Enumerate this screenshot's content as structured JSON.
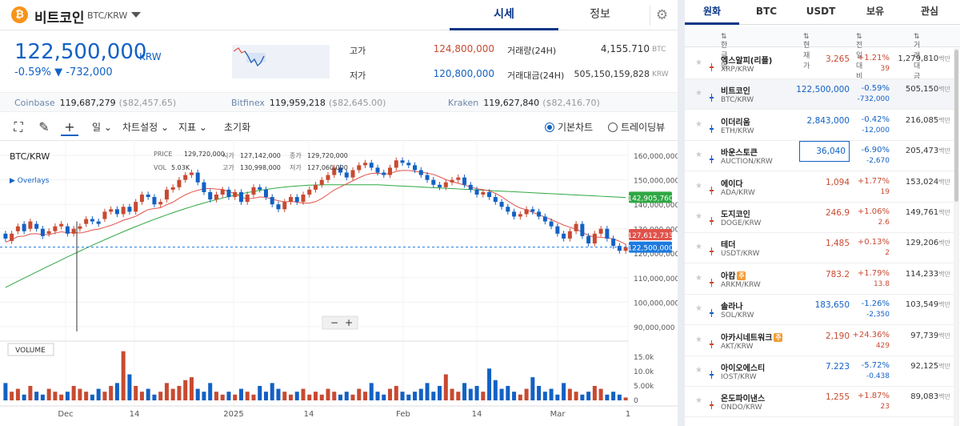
{
  "header": {
    "coin_icon": "₿",
    "title": "비트코인",
    "pair": "BTC/KRW",
    "tabs": [
      "시세",
      "정보"
    ],
    "settings_icon": "gear-icon"
  },
  "ticker": {
    "price": "122,500,000",
    "unit": "KRW",
    "change": "-0.59% ▼ -732,000",
    "high_label": "고가",
    "high": "124,800,000",
    "low_label": "저가",
    "low": "120,800,000",
    "vol_label": "거래량(24H)",
    "vol": "4,155.710",
    "vol_unit": "BTC",
    "amt_label": "거래대금(24H)",
    "amt": "505,150,159,828",
    "amt_unit": "KRW"
  },
  "exchanges": [
    {
      "name": "Coinbase",
      "krw": "119,687,279",
      "usd": "($82,457.65)"
    },
    {
      "name": "Bitfinex",
      "krw": "119,959,218",
      "usd": "($82,645.00)"
    },
    {
      "name": "Kraken",
      "krw": "119,627,840",
      "usd": "($82,416.70)"
    }
  ],
  "toolbar": {
    "period": "일",
    "chart_settings": "차트설정",
    "indicators": "지표",
    "reset": "초기화",
    "basic_chart": "기본차트",
    "tradingview": "트레이딩뷰"
  },
  "chart_data": {
    "type": "candlestick",
    "pair": "BTC/KRW",
    "overlays_label": "Overlays",
    "volume_label": "VOLUME",
    "ohlc_info": {
      "price_label": "PRICE",
      "price": "129,720,000",
      "open_label": "시가",
      "open": "127,142,000",
      "close_label": "종가",
      "close": "129,720,000",
      "vol_label": "VOL",
      "vol": "5.03K",
      "high_label": "고가",
      "high": "130,998,000",
      "low_label": "저가",
      "low": "127,060,000"
    },
    "y_ticks": [
      "160,000,000",
      "150,000,000",
      "140,000,000",
      "130,000,000",
      "120,000,000",
      "110,000,000",
      "100,000,000",
      "90,000,000"
    ],
    "y_range": [
      86000000,
      163000000
    ],
    "vol_ticks": [
      "15.0k",
      "10.0k",
      "5.00k",
      "0"
    ],
    "x_ticks": [
      "Dec",
      "14",
      "2025",
      "14",
      "Feb",
      "14",
      "Mar",
      "1"
    ],
    "price_tags": [
      {
        "label": "142,905,760",
        "value": 142905760,
        "color": "#2ea843"
      },
      {
        "label": "127,612,733",
        "value": 127612733,
        "color": "#e0524a"
      },
      {
        "label": "122,500,000",
        "value": 122500000,
        "color": "#1c7ae0"
      }
    ],
    "closes": [
      126,
      128,
      131,
      129,
      133,
      130,
      127,
      129,
      131,
      132,
      128,
      130,
      131,
      134,
      133,
      132,
      137,
      138,
      136,
      139,
      137,
      141,
      144,
      143,
      140,
      141,
      146,
      147,
      150,
      152,
      153,
      149,
      145,
      142,
      144,
      146,
      143,
      145,
      141,
      144,
      147,
      146,
      143,
      140,
      138,
      141,
      143,
      141,
      144,
      146,
      148,
      150,
      152,
      155,
      153,
      151,
      154,
      156,
      157,
      155,
      153,
      152,
      155,
      158,
      157,
      156,
      154,
      152,
      150,
      148,
      147,
      149,
      150,
      151,
      148,
      146,
      144,
      145,
      143,
      141,
      139,
      137,
      135,
      136,
      138,
      137,
      135,
      133,
      131,
      128,
      126,
      129,
      132,
      127,
      124,
      128,
      130,
      126,
      123,
      121,
      122.5
    ],
    "opens_offset": [
      2,
      -3,
      -2,
      3,
      -3,
      2,
      3,
      -1,
      -2,
      -1,
      3,
      -2,
      -1,
      -2,
      1,
      1,
      -3,
      -1,
      2,
      -3,
      2,
      -4,
      -3,
      1,
      3,
      -1,
      -4,
      -1,
      -3,
      -2,
      -1,
      4,
      4,
      3,
      -2,
      -2,
      3,
      -2,
      4,
      -3,
      -3,
      1,
      3,
      3,
      2,
      -3,
      -2,
      2,
      -3,
      -2,
      -2,
      -2,
      -2,
      -3,
      2,
      2,
      -3,
      -2,
      -1,
      2,
      2,
      1,
      -3,
      -3,
      1,
      1,
      2,
      2,
      2,
      2,
      1,
      -2,
      -1,
      -1,
      3,
      2,
      2,
      -1,
      2,
      2,
      2,
      2,
      2,
      -1,
      -2,
      1,
      2,
      2,
      2,
      3,
      2,
      -3,
      -3,
      5,
      3,
      -4,
      -2,
      4,
      3,
      2,
      -1.5
    ],
    "volumes": [
      6,
      3,
      4,
      2,
      5,
      3,
      2,
      4,
      3,
      2,
      3,
      5,
      4,
      3,
      2,
      4,
      3,
      5,
      6,
      17,
      9,
      5,
      3,
      4,
      2,
      3,
      6,
      4,
      5,
      7,
      8,
      4,
      3,
      6,
      3,
      2,
      3,
      2,
      4,
      3,
      2,
      5,
      3,
      6,
      4,
      3,
      2,
      3,
      4,
      2,
      3,
      2,
      4,
      3,
      2,
      3,
      2,
      4,
      3,
      6,
      3,
      2,
      4,
      5,
      3,
      2,
      3,
      4,
      6,
      3,
      5,
      9,
      4,
      3,
      6,
      4,
      5,
      3,
      11,
      7,
      4,
      5,
      3,
      2,
      4,
      8,
      5,
      3,
      4,
      2,
      6,
      4,
      3,
      2,
      3,
      5,
      4,
      2,
      3,
      2,
      1
    ],
    "ma_short_offset": -1.5,
    "ma_long_note": "",
    "y_unit": ""
  },
  "market": {
    "tabs": [
      "원화",
      "BTC",
      "USDT",
      "보유",
      "관심"
    ],
    "headers": [
      "한글명",
      "현재가",
      "전일대비",
      "거래대금"
    ],
    "vol_suffix": "백만",
    "rows": [
      {
        "name": "엑스알피(리플)",
        "pair": "XRP/KRW",
        "price": "3,265",
        "rate": "+1.21%",
        "diff": "39",
        "vol": "1,279,810",
        "dir": "up"
      },
      {
        "name": "비트코인",
        "pair": "BTC/KRW",
        "price": "122,500,000",
        "rate": "-0.59%",
        "diff": "-732,000",
        "vol": "505,150",
        "dir": "dn"
      },
      {
        "name": "이더리움",
        "pair": "ETH/KRW",
        "price": "2,843,000",
        "rate": "-0.42%",
        "diff": "-12,000",
        "vol": "216,085",
        "dir": "dn"
      },
      {
        "name": "바운스토큰",
        "pair": "AUCTION/KRW",
        "price": "36,040",
        "rate": "-6.90%",
        "diff": "-2,670",
        "vol": "205,473",
        "dir": "dn"
      },
      {
        "name": "에이다",
        "pair": "ADA/KRW",
        "price": "1,094",
        "rate": "+1.77%",
        "diff": "19",
        "vol": "153,024",
        "dir": "up"
      },
      {
        "name": "도지코인",
        "pair": "DOGE/KRW",
        "price": "246.9",
        "rate": "+1.06%",
        "diff": "2.6",
        "vol": "149,761",
        "dir": "up"
      },
      {
        "name": "테더",
        "pair": "USDT/KRW",
        "price": "1,485",
        "rate": "+0.13%",
        "diff": "2",
        "vol": "129,206",
        "dir": "up"
      },
      {
        "name": "아캄",
        "pair": "ARKM/KRW",
        "price": "783.2",
        "rate": "+1.79%",
        "diff": "13.8",
        "vol": "114,233",
        "dir": "up",
        "warn": "주"
      },
      {
        "name": "솔라나",
        "pair": "SOL/KRW",
        "price": "183,650",
        "rate": "-1.26%",
        "diff": "-2,350",
        "vol": "103,549",
        "dir": "dn"
      },
      {
        "name": "아카시네트워크",
        "pair": "AKT/KRW",
        "price": "2,190",
        "rate": "+24.36%",
        "diff": "429",
        "vol": "97,739",
        "dir": "up",
        "warn": "주"
      },
      {
        "name": "아이오에스티",
        "pair": "IOST/KRW",
        "price": "7.223",
        "rate": "-5.72%",
        "diff": "-0.438",
        "vol": "92,125",
        "dir": "dn"
      },
      {
        "name": "온도파이낸스",
        "pair": "ONDO/KRW",
        "price": "1,255",
        "rate": "+1.87%",
        "diff": "23",
        "vol": "89,083",
        "dir": "up"
      }
    ]
  },
  "colors": {
    "up": "#c84a31",
    "down": "#1261c4",
    "ma_short": "#e0524a",
    "ma_long": "#2ea843",
    "accent": "#093687"
  }
}
